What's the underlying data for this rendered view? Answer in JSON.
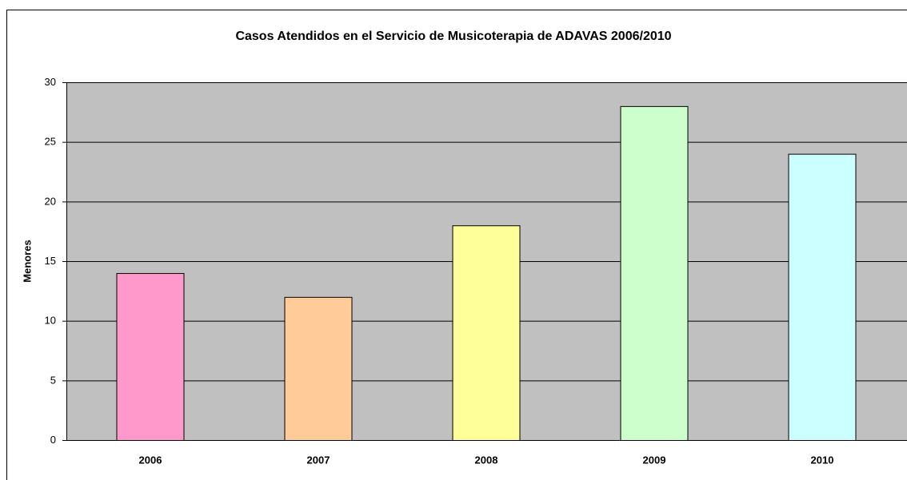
{
  "chart_data": {
    "type": "bar",
    "title": "Casos Atendidos en el Servicio de Musicoterapia de ADAVAS 2006/2010",
    "y_label": "Menores",
    "categories": [
      "2006",
      "2007",
      "2008",
      "2009",
      "2010"
    ],
    "values": [
      14,
      12,
      18,
      28,
      24
    ],
    "colors": [
      "#ff99cc",
      "#ffcc99",
      "#ffff99",
      "#ccffcc",
      "#ccffff"
    ],
    "ylim": [
      0,
      30
    ],
    "yticks": [
      0,
      5,
      10,
      15,
      20,
      25,
      30
    ],
    "grid": true
  }
}
